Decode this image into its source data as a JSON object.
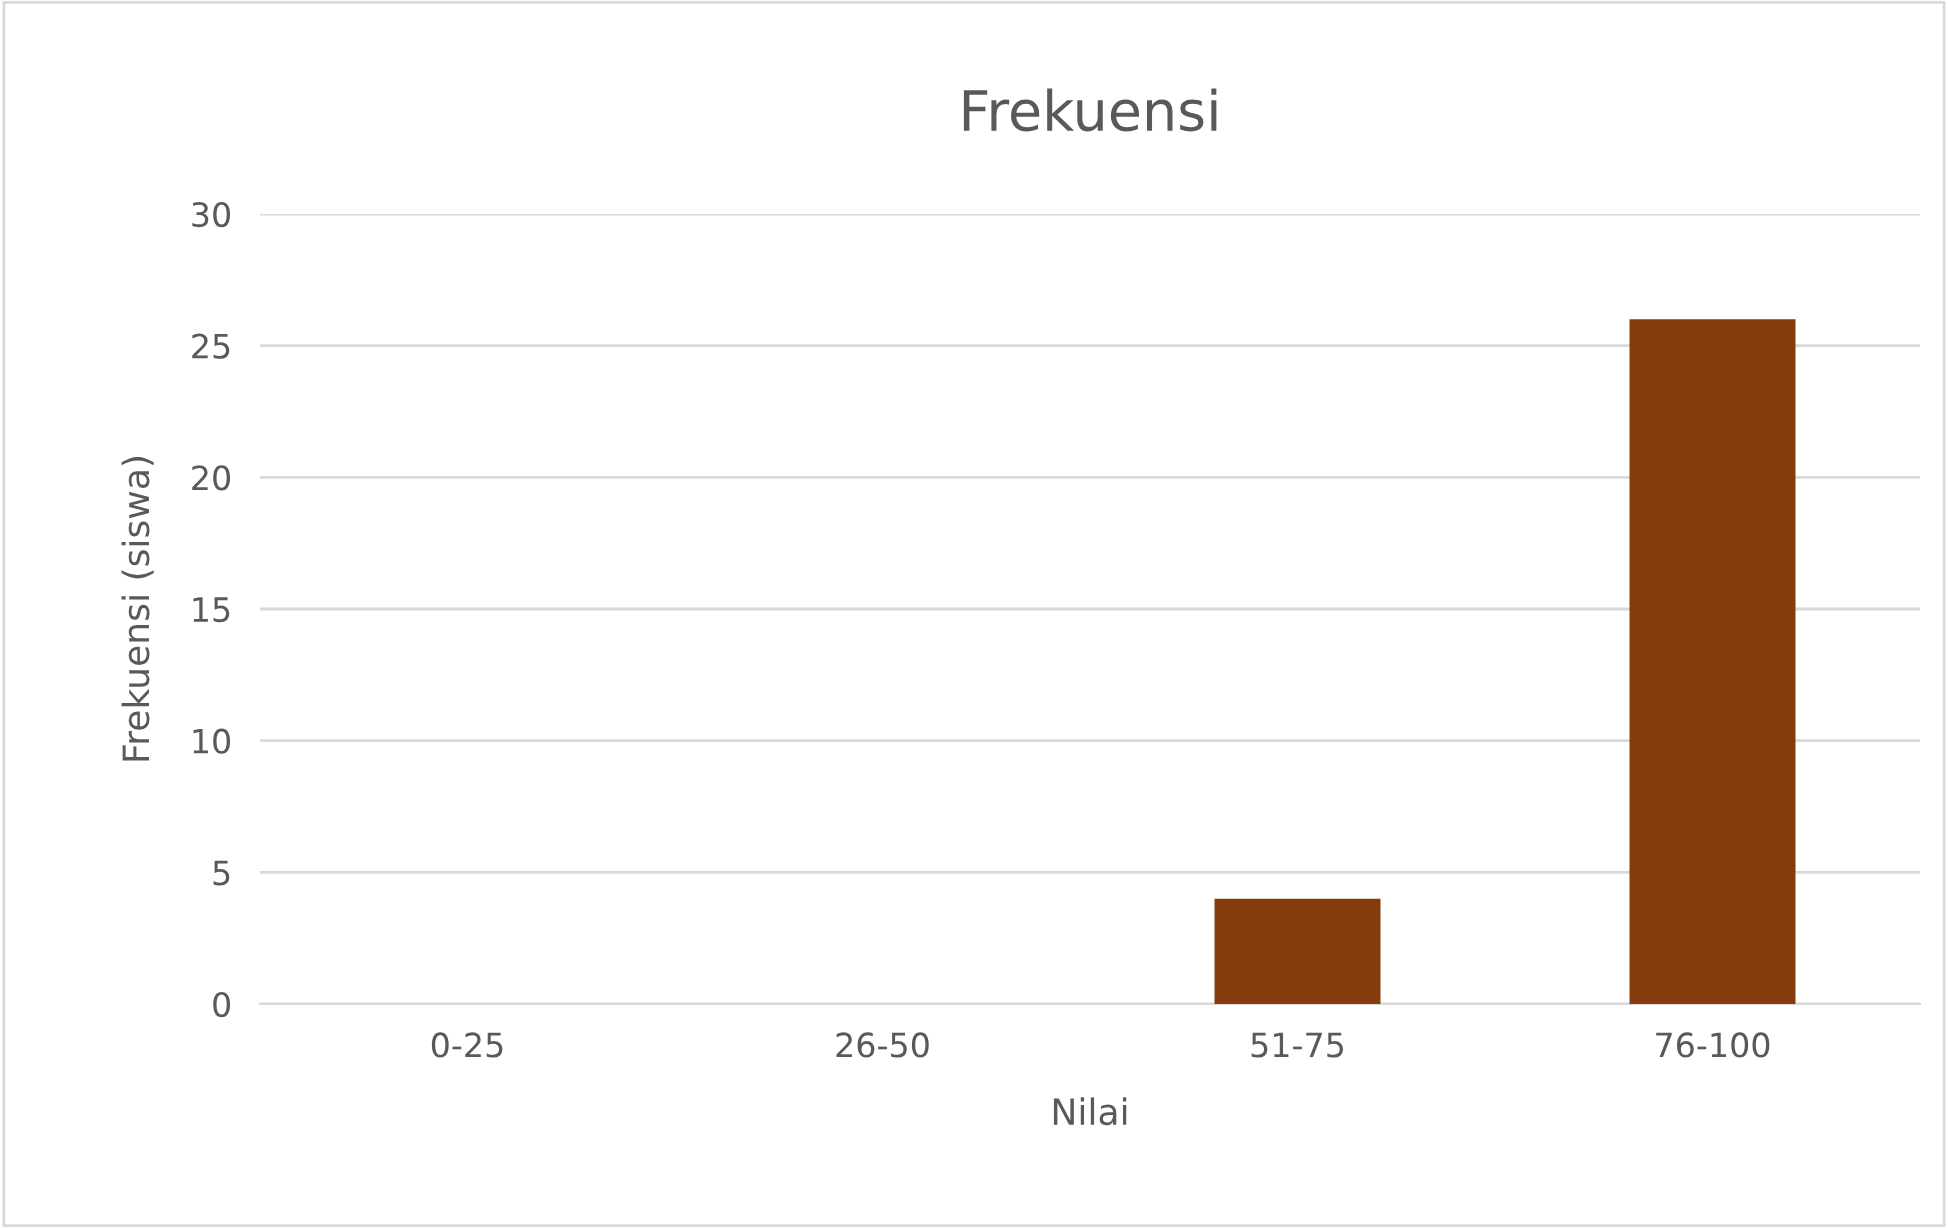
{
  "chart_data": {
    "type": "bar",
    "title": "Frekuensi",
    "xlabel": "Nilai",
    "ylabel": "Frekuensi (siswa)",
    "categories": [
      "0-25",
      "26-50",
      "51-75",
      "76-100"
    ],
    "values": [
      0,
      0,
      4,
      26
    ],
    "color": "#843c0c",
    "ylim": [
      0,
      30
    ],
    "yticks": [
      0,
      5,
      10,
      15,
      20,
      25,
      30
    ],
    "grid": "y",
    "legend": false
  }
}
